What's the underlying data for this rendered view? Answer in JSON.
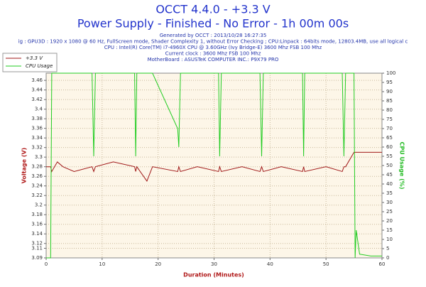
{
  "chart_data": {
    "type": "line",
    "title": "OCCT 4.4.0 - +3.3 V",
    "subtitle": "Power Supply - Finished - No Error - 1h 00m 00s",
    "info_lines": [
      "Generated by OCCT : 2013/10/28 16:27:35",
      "ig : GPU3D : 1920 x 1080 @ 60 Hz, FullScreen mode, Shader Complexity 1, without Error Checking ; CPU:Linpack : 64bits mode, 12803.4MB, use all logical c",
      "CPU : Intel(R) Core(TM) i7-4960X CPU @ 3.60GHz (Ivy Bridge-E) 3600 Mhz FSB 100 Mhz",
      "Current clock : 3600 Mhz FSB 100 Mhz",
      "MotherBoard : ASUSTeK COMPUTER INC.: P9X79 PRO"
    ],
    "xlabel": "Duration (Minutes)",
    "ylabel": "Voltage (V)",
    "y2label": "CPU Usage (%)",
    "x": [
      0,
      0.8,
      1,
      2,
      3,
      5,
      8.2,
      8.5,
      8.8,
      12,
      15.8,
      16,
      16.2,
      18,
      19,
      23.5,
      23.7,
      24,
      27,
      30.8,
      31,
      31.3,
      35,
      38.2,
      38.5,
      38.8,
      42,
      45.8,
      46,
      46.2,
      50,
      52.9,
      53.2,
      53.5,
      55,
      55.2,
      55.4,
      56,
      58,
      60
    ],
    "series": [
      {
        "name": "+3.3 V",
        "color": "#a01818",
        "values": [
          3.28,
          3.28,
          3.27,
          3.29,
          3.28,
          3.27,
          3.28,
          3.27,
          3.28,
          3.29,
          3.28,
          3.27,
          3.28,
          3.25,
          3.28,
          3.27,
          3.28,
          3.27,
          3.28,
          3.27,
          3.28,
          3.27,
          3.28,
          3.27,
          3.28,
          3.27,
          3.28,
          3.27,
          3.28,
          3.27,
          3.28,
          3.27,
          3.28,
          3.28,
          3.31,
          3.31,
          3.31,
          3.31,
          3.31,
          3.31
        ]
      },
      {
        "name": "CPU Usage",
        "color": "#22cc22",
        "axis": "y2",
        "values": [
          0,
          0,
          100,
          100,
          100,
          100,
          100,
          55,
          100,
          100,
          100,
          55,
          100,
          100,
          100,
          70,
          60,
          100,
          100,
          100,
          55,
          100,
          100,
          100,
          55,
          100,
          100,
          100,
          55,
          100,
          100,
          100,
          55,
          100,
          100,
          0,
          15,
          2,
          1,
          1
        ]
      }
    ],
    "xlim": [
      0,
      60
    ],
    "xticks": [
      0,
      10,
      20,
      30,
      40,
      50,
      60
    ],
    "ylim": [
      3.09,
      3.475
    ],
    "yticks": [
      3.46,
      3.44,
      3.42,
      3.4,
      3.38,
      3.36,
      3.34,
      3.32,
      3.3,
      3.28,
      3.26,
      3.24,
      3.22,
      3.2,
      3.18,
      3.16,
      3.14,
      3.12,
      3.11,
      3.09
    ],
    "y2lim": [
      0,
      100
    ],
    "y2ticks": [
      0,
      5,
      10,
      15,
      20,
      25,
      30,
      35,
      40,
      45,
      50,
      55,
      60,
      65,
      70,
      75,
      80,
      85,
      90,
      95,
      100
    ],
    "grid": true
  }
}
